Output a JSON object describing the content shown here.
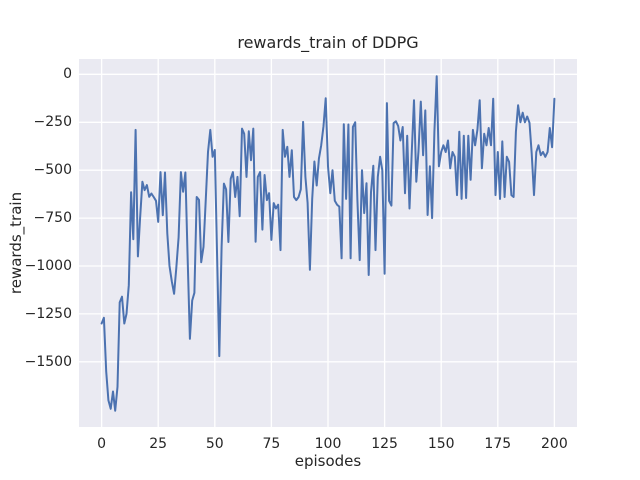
{
  "window": {
    "background": "#ffffff"
  },
  "chart_data": {
    "type": "line",
    "title": "rewards_train of DDPG",
    "xlabel": "episodes",
    "ylabel": "rewards_train",
    "style": "seaborn-darkgrid",
    "grid": true,
    "legend": false,
    "xlim": [
      -10,
      210
    ],
    "ylim": [
      -1840,
      80
    ],
    "xticks": [
      0,
      25,
      50,
      75,
      100,
      125,
      150,
      175,
      200
    ],
    "yticks": [
      0,
      -250,
      -500,
      -750,
      -1000,
      -1250,
      -1500
    ],
    "colors": {
      "line": "#4c72b0",
      "axes_bg": "#eaeaf2",
      "grid": "#ffffff",
      "text": "#262626"
    },
    "x": {
      "start": 0,
      "step": 1
    },
    "series": [
      {
        "name": "rewards_train",
        "values": [
          -1300,
          -1270,
          -1550,
          -1700,
          -1745,
          -1655,
          -1755,
          -1630,
          -1190,
          -1160,
          -1300,
          -1250,
          -1100,
          -615,
          -860,
          -290,
          -950,
          -750,
          -560,
          -604,
          -578,
          -639,
          -622,
          -640,
          -660,
          -770,
          -510,
          -735,
          -512,
          -830,
          -1000,
          -1080,
          -1145,
          -1010,
          -850,
          -510,
          -613,
          -512,
          -970,
          -1380,
          -1180,
          -1140,
          -640,
          -655,
          -980,
          -900,
          -650,
          -405,
          -290,
          -430,
          -395,
          -950,
          -1470,
          -900,
          -570,
          -600,
          -875,
          -545,
          -510,
          -640,
          -535,
          -740,
          -283,
          -310,
          -535,
          -297,
          -448,
          -283,
          -873,
          -535,
          -510,
          -810,
          -525,
          -656,
          -620,
          -864,
          -672,
          -700,
          -680,
          -917,
          -290,
          -430,
          -378,
          -535,
          -396,
          -640,
          -656,
          -640,
          -600,
          -248,
          -535,
          -670,
          -1020,
          -650,
          -455,
          -580,
          -440,
          -370,
          -270,
          -125,
          -480,
          -620,
          -500,
          -660,
          -680,
          -690,
          -960,
          -260,
          -650,
          -262,
          -960,
          -274,
          -250,
          -656,
          -969,
          -500,
          -724,
          -568,
          -1047,
          -615,
          -477,
          -917,
          -535,
          -430,
          -500,
          -1040,
          -150,
          -660,
          -685,
          -255,
          -245,
          -270,
          -345,
          -275,
          -620,
          -320,
          -700,
          -400,
          -135,
          -560,
          -400,
          -142,
          -422,
          -188,
          -734,
          -480,
          -750,
          -300,
          -10,
          -480,
          -405,
          -370,
          -405,
          -345,
          -490,
          -405,
          -430,
          -630,
          -300,
          -650,
          -320,
          -645,
          -320,
          -550,
          -290,
          -370,
          -290,
          -135,
          -490,
          -310,
          -370,
          -280,
          -370,
          -127,
          -630,
          -405,
          -650,
          -350,
          -640,
          -430,
          -457,
          -630,
          -640,
          -300,
          -161,
          -250,
          -200,
          -250,
          -220,
          -253,
          -413,
          -630,
          -405,
          -370,
          -422,
          -405,
          -430,
          -405,
          -280,
          -380,
          -127
        ]
      }
    ]
  }
}
